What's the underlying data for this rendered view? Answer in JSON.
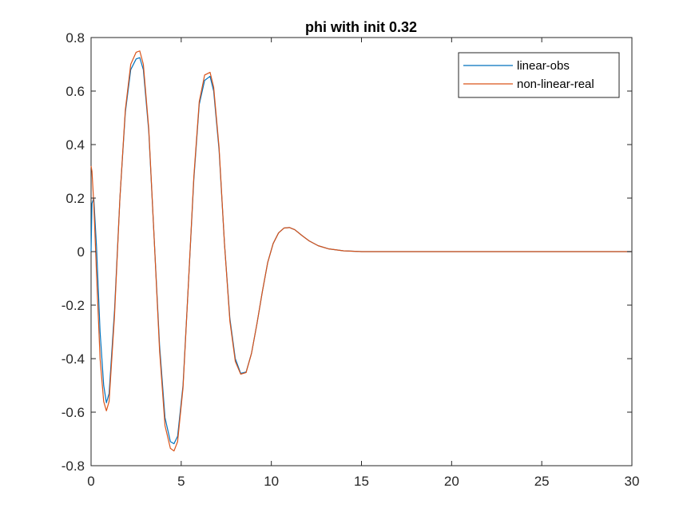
{
  "chart_data": {
    "type": "line",
    "title": "phi with init 0.32",
    "xlabel": "",
    "ylabel": "",
    "xlim": [
      0,
      30
    ],
    "ylim": [
      -0.8,
      0.8
    ],
    "xticks": [
      0,
      5,
      10,
      15,
      20,
      25,
      30
    ],
    "xtick_labels": [
      "0",
      "5",
      "10",
      "15",
      "20",
      "25",
      "30"
    ],
    "yticks": [
      -0.8,
      -0.6,
      -0.4,
      -0.2,
      0,
      0.2,
      0.4,
      0.6,
      0.8
    ],
    "ytick_labels": [
      "-0.8",
      "-0.6",
      "-0.4",
      "-0.2",
      "0",
      "0.2",
      "0.4",
      "0.6",
      "0.8"
    ],
    "grid": false,
    "legend_position": "top-right",
    "series": [
      {
        "name": "linear-obs",
        "color": "#0072BD",
        "x": [
          0,
          0.05,
          0.15,
          0.3,
          0.5,
          0.7,
          0.85,
          1.0,
          1.3,
          1.6,
          1.9,
          2.2,
          2.5,
          2.7,
          2.9,
          3.2,
          3.5,
          3.8,
          4.1,
          4.4,
          4.6,
          4.8,
          5.1,
          5.4,
          5.7,
          6.0,
          6.3,
          6.6,
          6.8,
          7.1,
          7.4,
          7.7,
          8.0,
          8.3,
          8.6,
          8.9,
          9.2,
          9.5,
          9.8,
          10.1,
          10.4,
          10.7,
          11.0,
          11.3,
          11.7,
          12.1,
          12.6,
          13.2,
          14.0,
          15.0,
          17.0,
          20.0,
          25.0,
          30.0
        ],
        "y": [
          0.0,
          0.18,
          0.2,
          0.02,
          -0.3,
          -0.5,
          -0.565,
          -0.53,
          -0.22,
          0.2,
          0.52,
          0.68,
          0.72,
          0.725,
          0.68,
          0.45,
          0.05,
          -0.35,
          -0.62,
          -0.71,
          -0.718,
          -0.69,
          -0.5,
          -0.12,
          0.27,
          0.55,
          0.64,
          0.655,
          0.6,
          0.38,
          0.03,
          -0.25,
          -0.4,
          -0.455,
          -0.45,
          -0.38,
          -0.27,
          -0.15,
          -0.04,
          0.03,
          0.07,
          0.088,
          0.09,
          0.082,
          0.06,
          0.04,
          0.022,
          0.01,
          0.003,
          0.0,
          0.0,
          0.0,
          0.0,
          0.0
        ]
      },
      {
        "name": "non-linear-real",
        "color": "#D95319",
        "x": [
          0,
          0.05,
          0.15,
          0.3,
          0.5,
          0.7,
          0.85,
          1.0,
          1.3,
          1.6,
          1.9,
          2.2,
          2.5,
          2.7,
          2.9,
          3.2,
          3.5,
          3.8,
          4.1,
          4.4,
          4.6,
          4.8,
          5.1,
          5.4,
          5.7,
          6.0,
          6.3,
          6.6,
          6.8,
          7.1,
          7.4,
          7.7,
          8.0,
          8.3,
          8.6,
          8.9,
          9.2,
          9.5,
          9.8,
          10.1,
          10.4,
          10.7,
          11.0,
          11.3,
          11.7,
          12.1,
          12.6,
          13.2,
          14.0,
          15.0,
          17.0,
          20.0,
          25.0,
          30.0
        ],
        "y": [
          0.32,
          0.3,
          0.18,
          -0.08,
          -0.4,
          -0.56,
          -0.595,
          -0.56,
          -0.24,
          0.2,
          0.53,
          0.7,
          0.745,
          0.75,
          0.7,
          0.46,
          0.05,
          -0.37,
          -0.65,
          -0.735,
          -0.745,
          -0.71,
          -0.51,
          -0.12,
          0.28,
          0.56,
          0.66,
          0.67,
          0.615,
          0.39,
          0.03,
          -0.26,
          -0.41,
          -0.458,
          -0.452,
          -0.38,
          -0.27,
          -0.15,
          -0.04,
          0.03,
          0.07,
          0.088,
          0.09,
          0.082,
          0.06,
          0.04,
          0.022,
          0.01,
          0.003,
          0.0,
          0.0,
          0.0,
          0.0,
          0.0
        ]
      }
    ]
  }
}
